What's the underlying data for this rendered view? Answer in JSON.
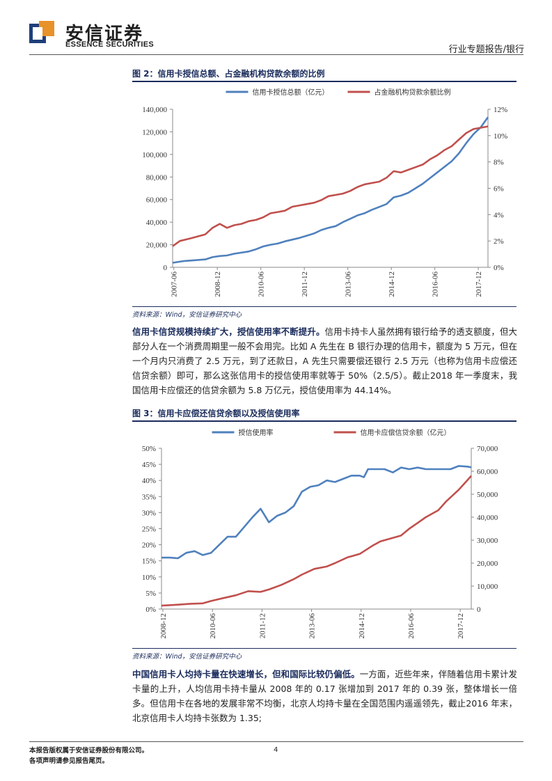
{
  "header": {
    "logo_cn": "安信证券",
    "logo_en": "ESSENCE SECURITIES",
    "report_type": "行业专题报告/银行"
  },
  "figure2": {
    "title": "图 2：信用卡授信总额、占金融机构贷款余额的比例",
    "source": "资料来源：Wind，安信证券研究中心",
    "chart_data": {
      "type": "line",
      "title": "",
      "legend": [
        "信用卡授信总额（亿元）",
        "占金融机构贷款余额比例"
      ],
      "legend_position": "top",
      "colors": {
        "series1": "#4f81bd",
        "series2": "#c0504d"
      },
      "x_ticks": [
        "2007-06",
        "2008-12",
        "2010-06",
        "2011-12",
        "2013-06",
        "2014-12",
        "2016-06",
        "2017-12"
      ],
      "y_left": {
        "min": 0,
        "max": 140000,
        "step": 20000,
        "ticks": [
          "0",
          "20,000",
          "40,000",
          "60,000",
          "80,000",
          "100,000",
          "120,000",
          "140,000"
        ]
      },
      "y_right": {
        "min": 0,
        "max": 12,
        "step": 2,
        "ticks": [
          "0%",
          "2%",
          "4%",
          "6%",
          "8%",
          "10%",
          "12%"
        ]
      },
      "x_range": [
        2007.375,
        2018.25
      ],
      "series": [
        {
          "name": "信用卡授信总额（亿元）",
          "axis": "left",
          "points": [
            [
              2007.375,
              4000
            ],
            [
              2007.75,
              5500
            ],
            [
              2008.0,
              6000
            ],
            [
              2008.5,
              7000
            ],
            [
              2008.75,
              9000
            ],
            [
              2009.0,
              10000
            ],
            [
              2009.25,
              10500
            ],
            [
              2009.5,
              12000
            ],
            [
              2010.0,
              14000
            ],
            [
              2010.25,
              16000
            ],
            [
              2010.5,
              18500
            ],
            [
              2010.75,
              20000
            ],
            [
              2011.0,
              21000
            ],
            [
              2011.25,
              23000
            ],
            [
              2011.75,
              26000
            ],
            [
              2012.0,
              28000
            ],
            [
              2012.25,
              30000
            ],
            [
              2012.5,
              33000
            ],
            [
              2012.75,
              35000
            ],
            [
              2013.0,
              36500
            ],
            [
              2013.25,
              40000
            ],
            [
              2013.5,
              43000
            ],
            [
              2013.75,
              46000
            ],
            [
              2014.0,
              48000
            ],
            [
              2014.25,
              51000
            ],
            [
              2014.5,
              53500
            ],
            [
              2014.75,
              56000
            ],
            [
              2015.0,
              62000
            ],
            [
              2015.25,
              63500
            ],
            [
              2015.5,
              66000
            ],
            [
              2015.75,
              70000
            ],
            [
              2016.0,
              74000
            ],
            [
              2016.25,
              79000
            ],
            [
              2016.5,
              84000
            ],
            [
              2016.75,
              89000
            ],
            [
              2017.0,
              94000
            ],
            [
              2017.25,
              101000
            ],
            [
              2017.5,
              110000
            ],
            [
              2017.75,
              118000
            ],
            [
              2018.0,
              124000
            ],
            [
              2018.25,
              133000
            ]
          ]
        },
        {
          "name": "占金融机构贷款余额比例",
          "axis": "right",
          "points": [
            [
              2007.375,
              1.6
            ],
            [
              2007.625,
              2.0
            ],
            [
              2008.0,
              2.2
            ],
            [
              2008.5,
              2.5
            ],
            [
              2008.75,
              3.0
            ],
            [
              2009.0,
              3.3
            ],
            [
              2009.25,
              3.0
            ],
            [
              2009.5,
              3.2
            ],
            [
              2009.75,
              3.3
            ],
            [
              2010.0,
              3.5
            ],
            [
              2010.25,
              3.6
            ],
            [
              2010.5,
              3.8
            ],
            [
              2010.75,
              4.1
            ],
            [
              2011.0,
              4.2
            ],
            [
              2011.25,
              4.3
            ],
            [
              2011.5,
              4.6
            ],
            [
              2011.75,
              4.7
            ],
            [
              2012.0,
              4.8
            ],
            [
              2012.25,
              4.9
            ],
            [
              2012.5,
              5.1
            ],
            [
              2012.75,
              5.4
            ],
            [
              2013.0,
              5.5
            ],
            [
              2013.25,
              5.6
            ],
            [
              2013.5,
              5.8
            ],
            [
              2013.75,
              6.1
            ],
            [
              2014.0,
              6.3
            ],
            [
              2014.25,
              6.4
            ],
            [
              2014.5,
              6.5
            ],
            [
              2014.75,
              6.8
            ],
            [
              2015.0,
              7.3
            ],
            [
              2015.25,
              7.2
            ],
            [
              2015.5,
              7.4
            ],
            [
              2015.75,
              7.6
            ],
            [
              2016.0,
              7.8
            ],
            [
              2016.25,
              8.2
            ],
            [
              2016.5,
              8.5
            ],
            [
              2016.75,
              8.9
            ],
            [
              2017.0,
              9.2
            ],
            [
              2017.25,
              9.7
            ],
            [
              2017.5,
              10.2
            ],
            [
              2017.75,
              10.5
            ],
            [
              2018.0,
              10.6
            ],
            [
              2018.25,
              10.7
            ]
          ]
        }
      ]
    }
  },
  "paragraph1": {
    "lead": "信用卡信贷规模持续扩大，授信使用率不断提升。",
    "body": "信用卡持卡人虽然拥有银行给予的透支额度，但大部分人在一个消费周期里一般不会用完。比如 A 先生在 B 银行办理的信用卡，额度为 5 万元，但在一个月内只消费了 2.5 万元，到了还款日，A 先生只需要偿还银行 2.5 万元（也称为信用卡应偿还信贷余额）即可，那么这张信用卡的授信使用率就等于 50%（2.5/5）。截止2018 年一季度末，我国信用卡应偿还的信贷余额为 5.8 万亿元，授信使用率为 44.14%。"
  },
  "figure3": {
    "title": "图 3：信用卡应偿还信贷余额以及授信使用率",
    "source": "资料来源：Wind，安信证券研究中心",
    "chart_data": {
      "type": "line",
      "title": "",
      "legend": [
        "授信使用率",
        "信用卡应偿信贷余额（亿元）"
      ],
      "legend_position": "top",
      "colors": {
        "series1": "#4f81bd",
        "series2": "#c0504d"
      },
      "x_ticks": [
        "2008-12",
        "2010-06",
        "2011-12",
        "2013-06",
        "2014-12",
        "2016-06",
        "2017-12"
      ],
      "y_left": {
        "min": 0,
        "max": 50,
        "step": 5,
        "ticks": [
          "0%",
          "5%",
          "10%",
          "15%",
          "20%",
          "25%",
          "30%",
          "35%",
          "40%",
          "45%",
          "50%"
        ]
      },
      "y_right": {
        "min": 0,
        "max": 70000,
        "step": 10000,
        "ticks": [
          "0",
          "10,000",
          "20,000",
          "30,000",
          "40,000",
          "50,000",
          "60,000",
          "70,000"
        ]
      },
      "x_range": [
        2008.875,
        2018.25
      ],
      "series": [
        {
          "name": "授信使用率",
          "axis": "left",
          "points": [
            [
              2008.875,
              16
            ],
            [
              2009.125,
              16
            ],
            [
              2009.375,
              15.8
            ],
            [
              2009.625,
              17.5
            ],
            [
              2009.875,
              18
            ],
            [
              2010.125,
              16.8
            ],
            [
              2010.375,
              17.5
            ],
            [
              2010.625,
              20
            ],
            [
              2010.875,
              22.5
            ],
            [
              2011.125,
              22.5
            ],
            [
              2011.375,
              25.5
            ],
            [
              2011.625,
              28.5
            ],
            [
              2011.875,
              31.2
            ],
            [
              2012.125,
              27
            ],
            [
              2012.375,
              29
            ],
            [
              2012.625,
              30
            ],
            [
              2012.875,
              32
            ],
            [
              2013.125,
              36.5
            ],
            [
              2013.375,
              38
            ],
            [
              2013.625,
              38.5
            ],
            [
              2013.875,
              40
            ],
            [
              2014.125,
              39.5
            ],
            [
              2014.375,
              40.5
            ],
            [
              2014.625,
              41.5
            ],
            [
              2014.875,
              41.5
            ],
            [
              2015.0,
              41
            ],
            [
              2015.125,
              43.5
            ],
            [
              2015.375,
              43.5
            ],
            [
              2015.625,
              43.5
            ],
            [
              2015.875,
              42.5
            ],
            [
              2016.125,
              44
            ],
            [
              2016.375,
              43.5
            ],
            [
              2016.625,
              44
            ],
            [
              2016.875,
              43.5
            ],
            [
              2017.125,
              43.5
            ],
            [
              2017.375,
              43.5
            ],
            [
              2017.625,
              43.5
            ],
            [
              2017.875,
              44.5
            ],
            [
              2018.125,
              44.3
            ],
            [
              2018.25,
              44.1
            ]
          ]
        },
        {
          "name": "信用卡应偿信贷余额（亿元）",
          "axis": "right",
          "points": [
            [
              2008.875,
              1500
            ],
            [
              2009.25,
              1800
            ],
            [
              2009.75,
              2300
            ],
            [
              2010.125,
              2500
            ],
            [
              2010.375,
              3500
            ],
            [
              2010.75,
              4800
            ],
            [
              2011.125,
              6000
            ],
            [
              2011.5,
              7800
            ],
            [
              2011.875,
              7500
            ],
            [
              2012.125,
              8500
            ],
            [
              2012.5,
              10500
            ],
            [
              2012.875,
              13000
            ],
            [
              2013.125,
              15000
            ],
            [
              2013.5,
              17500
            ],
            [
              2013.875,
              18500
            ],
            [
              2014.125,
              20000
            ],
            [
              2014.5,
              22500
            ],
            [
              2014.875,
              24000
            ],
            [
              2015.25,
              27500
            ],
            [
              2015.5,
              29500
            ],
            [
              2015.875,
              31000
            ],
            [
              2016.125,
              32000
            ],
            [
              2016.375,
              35000
            ],
            [
              2016.625,
              37500
            ],
            [
              2016.875,
              40000
            ],
            [
              2017.25,
              43000
            ],
            [
              2017.5,
              47000
            ],
            [
              2017.875,
              52000
            ],
            [
              2018.125,
              56000
            ],
            [
              2018.25,
              58000
            ]
          ]
        }
      ]
    }
  },
  "paragraph2": {
    "lead": "中国信用卡人均持卡量在快速增长，但和国际比较仍偏低。",
    "body": "一方面，近些年来，伴随着信用卡累计发卡量的上升，人均信用卡持卡量从 2008 年的 0.17 张增加到 2017 年的 0.39 张，整体增长一倍多。但信用卡在各地的发展非常不均衡，北京人均持卡量在全国范围内遥遥领先，截止2016 年末，北京信用卡人均持卡张数为 1.35;"
  },
  "footer": {
    "note1": "本报告版权属于安信证券股份有限公司。",
    "note2": "各项声明请参见报告尾页。",
    "page": "4"
  }
}
